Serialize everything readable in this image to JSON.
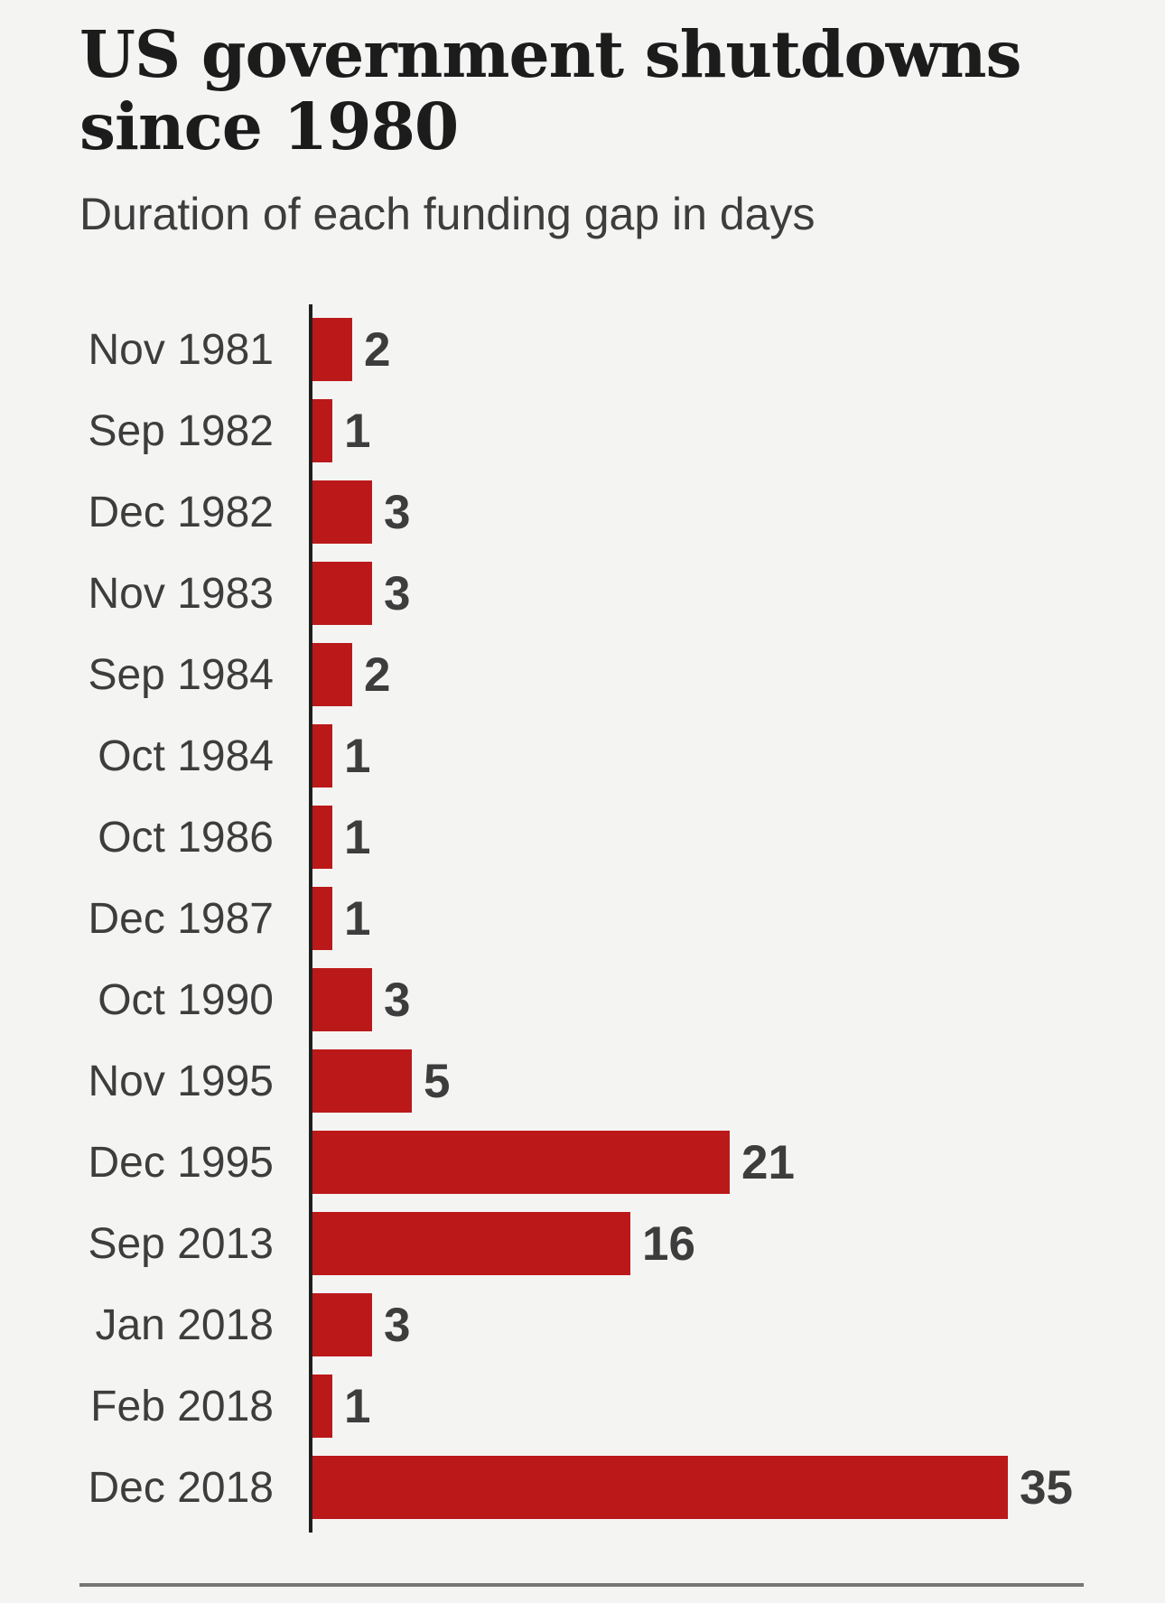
{
  "header": {
    "title_line1": "US government shutdowns",
    "title_line2": "since 1980",
    "subtitle": "Duration of each funding gap in days"
  },
  "chart_data": {
    "type": "bar",
    "orientation": "horizontal",
    "title": "US government shutdowns since 1980",
    "subtitle": "Duration of each funding gap in days",
    "unit": "days",
    "categories": [
      "Nov 1981",
      "Sep 1982",
      "Dec 1982",
      "Nov 1983",
      "Sep 1984",
      "Oct 1984",
      "Oct 1986",
      "Dec 1987",
      "Oct 1990",
      "Nov 1995",
      "Dec 1995",
      "Sep 2013",
      "Jan 2018",
      "Feb 2018",
      "Dec 2018"
    ],
    "values": [
      2,
      1,
      3,
      3,
      2,
      1,
      1,
      1,
      3,
      5,
      21,
      16,
      3,
      1,
      35
    ],
    "xlim": [
      0,
      35
    ],
    "grid": false,
    "legend": false,
    "value_labels": "end-of-bar",
    "bar_color": "#bb1919",
    "axis_color": "#1f1f1f",
    "label_color": "#3d3d3d",
    "background_color": "#f4f4f3",
    "divider_color": "#767676"
  }
}
